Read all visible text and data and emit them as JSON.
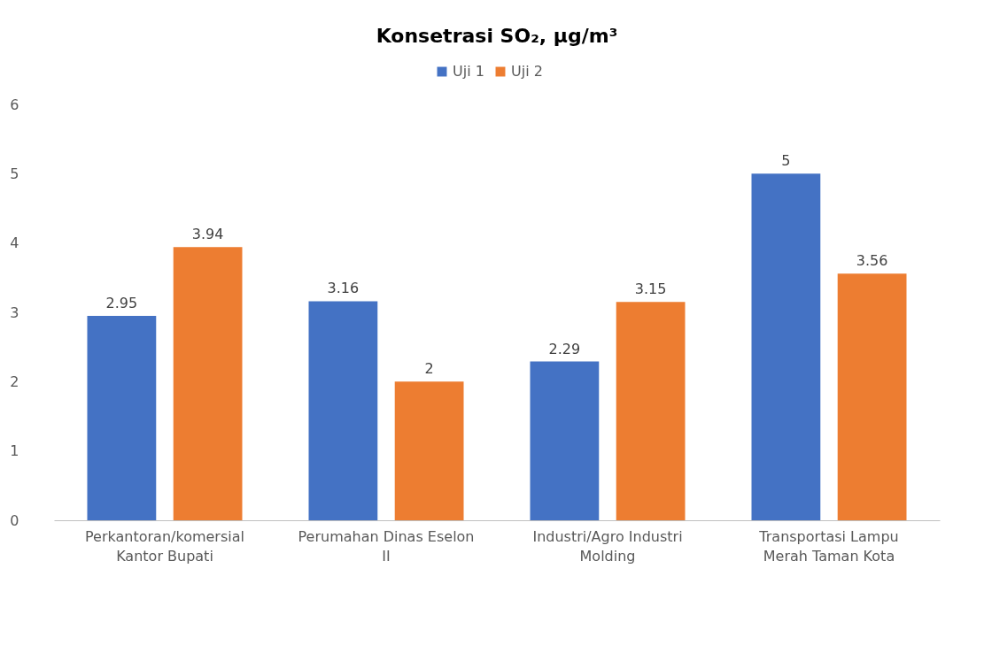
{
  "chart_data": {
    "type": "bar",
    "title": "Konsetrasi SO₂, µg/m³",
    "categories": [
      "Perkantoran/komersial\nKantor Bupati",
      "Perumahan Dinas Eselon\nII",
      "Industri/Agro Industri\nMolding",
      "Transportasi Lampu\nMerah Taman Kota"
    ],
    "series": [
      {
        "name": "Uji 1",
        "color": "#4472c4",
        "values": [
          2.95,
          3.16,
          2.29,
          5
        ]
      },
      {
        "name": "Uji 2",
        "color": "#ed7d31",
        "values": [
          3.94,
          2,
          3.15,
          3.56
        ]
      }
    ],
    "ylim": [
      0,
      6
    ],
    "yticks": [
      0,
      1,
      2,
      3,
      4,
      5,
      6
    ],
    "grid": false,
    "legend": "top",
    "data_labels": true
  }
}
